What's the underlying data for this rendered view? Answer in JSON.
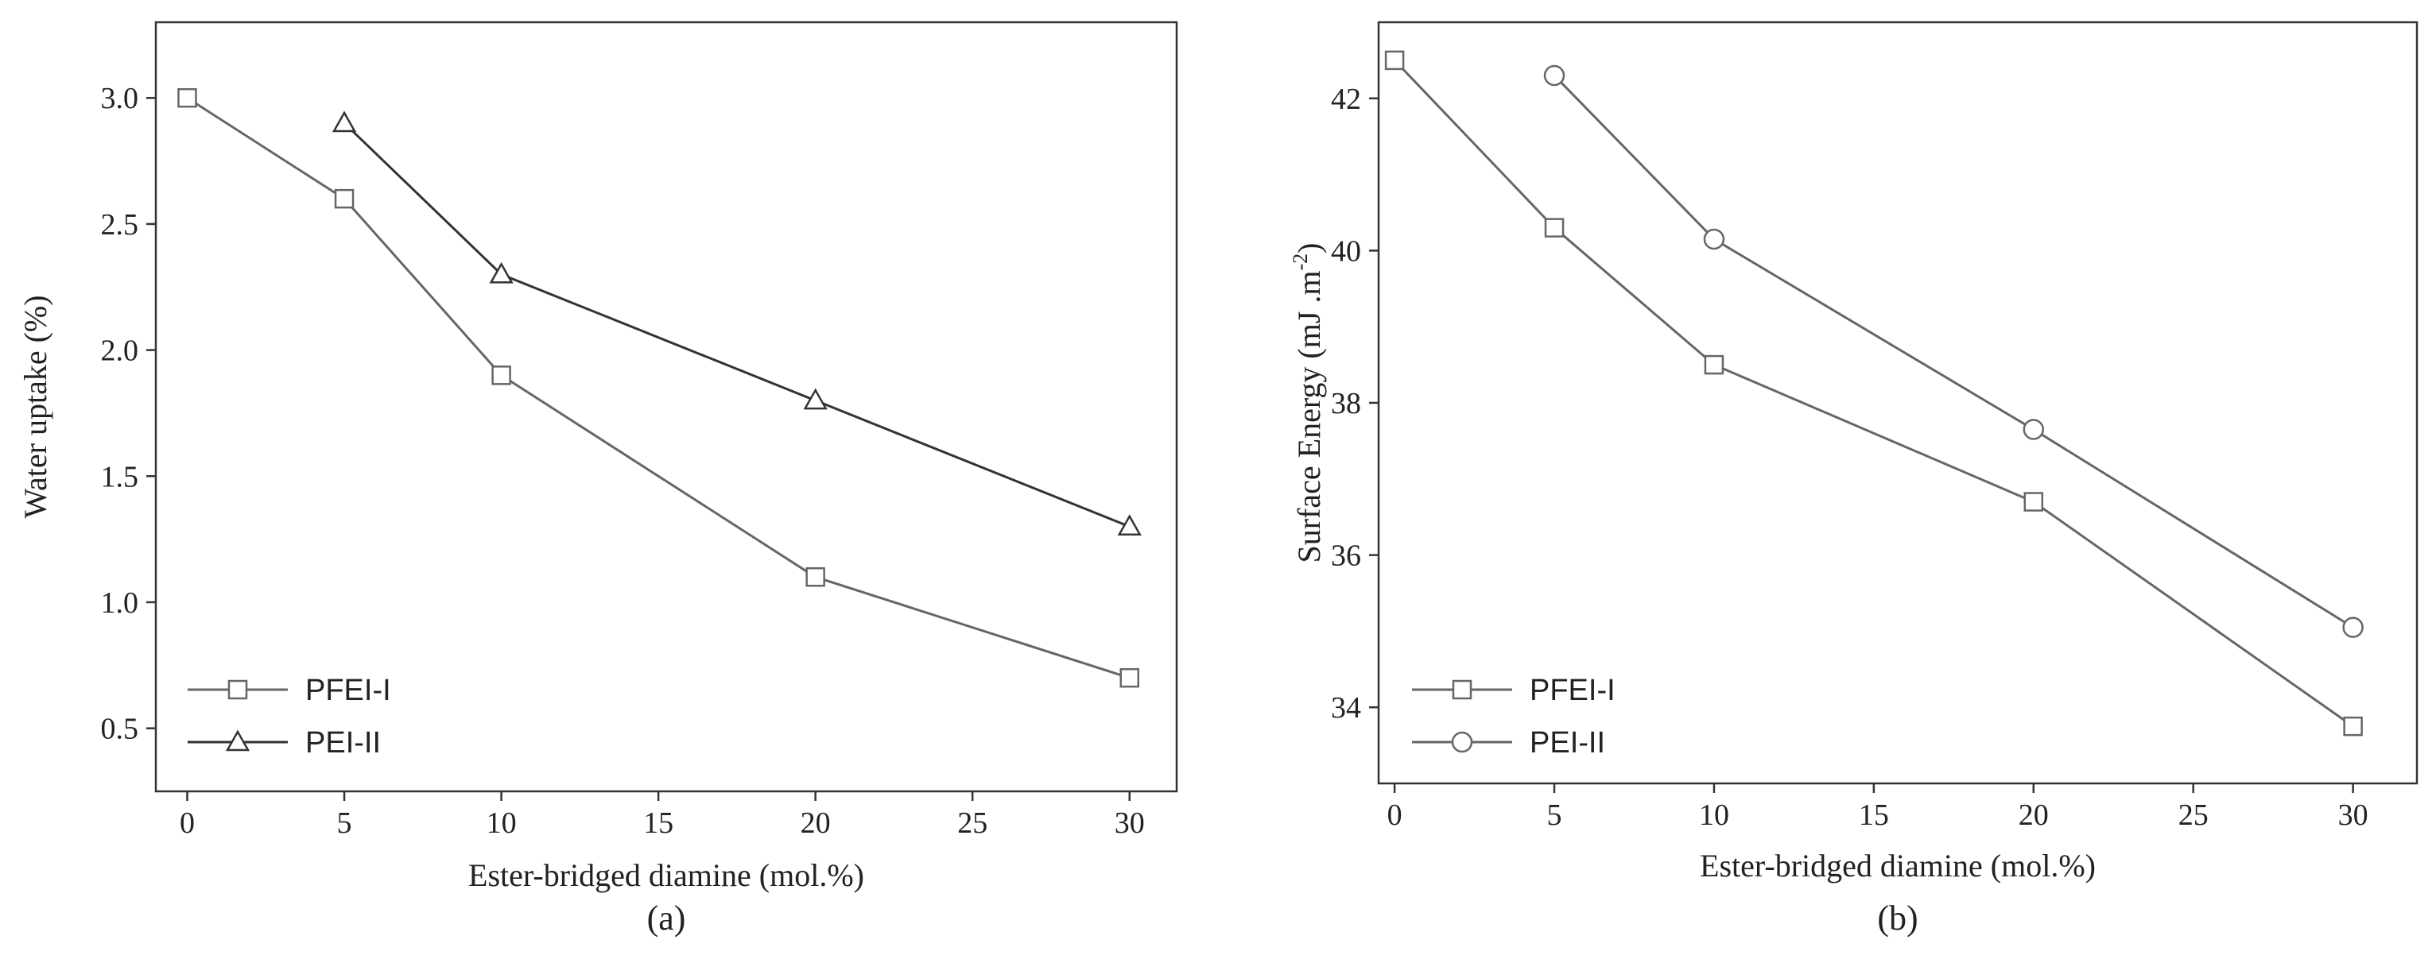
{
  "chart_data": [
    {
      "type": "line",
      "panel_label": "(a)",
      "xlabel": "Ester-bridged diamine (mol.%)",
      "ylabel": "Water uptake (%)",
      "xlim": [
        -1,
        31.5
      ],
      "ylim": [
        0.25,
        3.3
      ],
      "xticks": [
        0,
        5,
        10,
        15,
        20,
        25,
        30
      ],
      "xtick_labels": [
        "0",
        "5",
        "10",
        "15",
        "20",
        "25",
        "30"
      ],
      "yticks": [
        0.5,
        1.0,
        1.5,
        2.0,
        2.5,
        3.0
      ],
      "ytick_labels": [
        "0.5",
        "1.0",
        "1.5",
        "2.0",
        "2.5",
        "3.0"
      ],
      "legend_position": "bottom-left",
      "series": [
        {
          "name": "PFEI-I",
          "marker": "square",
          "color": "#666666",
          "x": [
            0,
            5,
            10,
            20,
            30
          ],
          "values": [
            3.0,
            2.6,
            1.9,
            1.1,
            0.7
          ]
        },
        {
          "name": "PEI-II",
          "marker": "triangle",
          "color": "#333333",
          "x": [
            5,
            10,
            20,
            30
          ],
          "values": [
            2.9,
            2.3,
            1.8,
            1.3
          ]
        }
      ]
    },
    {
      "type": "line",
      "panel_label": "(b)",
      "xlabel": "Ester-bridged diamine (mol.%)",
      "ylabel": "Surface Energy (mJ .m",
      "ylabel_superscript": "-2",
      "ylabel_suffix": ")",
      "xlim": [
        -0.5,
        32
      ],
      "ylim": [
        33,
        43
      ],
      "xticks": [
        0,
        5,
        10,
        15,
        20,
        25,
        30
      ],
      "xtick_labels": [
        "0",
        "5",
        "10",
        "15",
        "20",
        "25",
        "30"
      ],
      "yticks": [
        34,
        36,
        38,
        40,
        42
      ],
      "ytick_labels": [
        "34",
        "36",
        "38",
        "40",
        "42"
      ],
      "legend_position": "bottom-left",
      "series": [
        {
          "name": "PFEI-I",
          "marker": "square",
          "color": "#666666",
          "x": [
            0,
            5,
            10,
            20,
            30
          ],
          "values": [
            42.5,
            40.3,
            38.5,
            36.7,
            33.75
          ]
        },
        {
          "name": "PEI-II",
          "marker": "circle",
          "color": "#666666",
          "x": [
            5,
            10,
            20,
            30
          ],
          "values": [
            42.3,
            40.15,
            37.65,
            35.05
          ]
        }
      ]
    }
  ]
}
